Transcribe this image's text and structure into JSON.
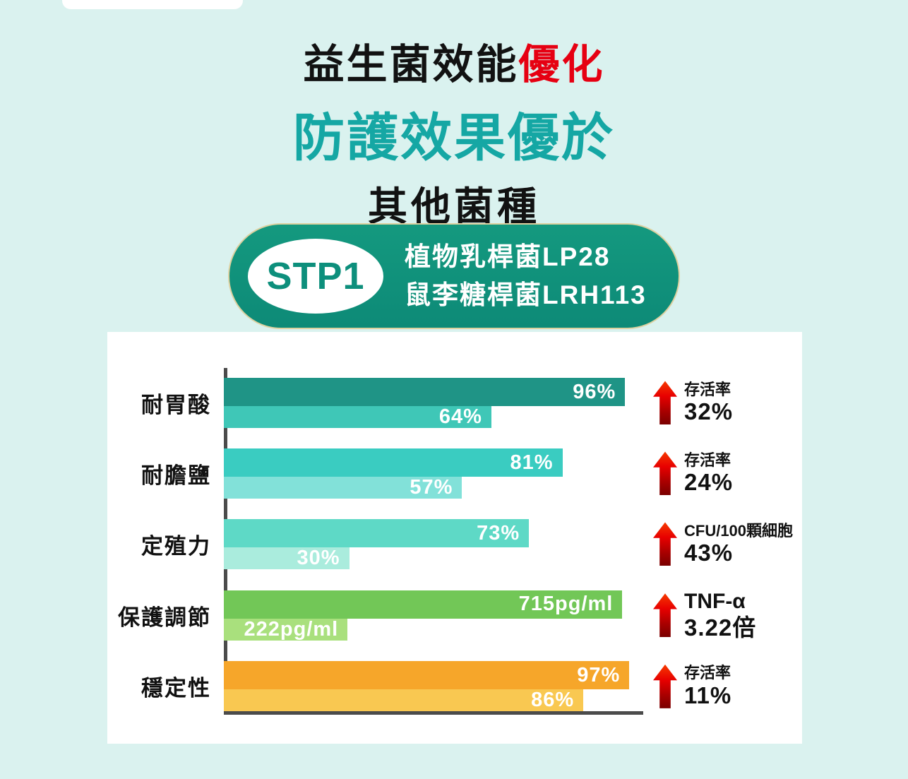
{
  "page": {
    "background": "#daf2ef"
  },
  "header": {
    "title_line1_black": "益生菌效能",
    "title_line1_red": "優化",
    "title_line2": "防護效果優於",
    "title_line3": "其他菌種",
    "accent_red": "#e60012",
    "accent_teal": "#15a7a4"
  },
  "badge": {
    "code": "STP1",
    "line1": "植物乳桿菌LP28",
    "line2": "鼠李糖桿菌LRH113",
    "background": "#0f9180",
    "code_color": "#0d8f7c"
  },
  "chart_data": {
    "type": "bar",
    "orientation": "horizontal",
    "title": "益生菌效能優化 防護效果優於其他菌種",
    "grid": false,
    "legend": false,
    "axis_color": "#4b4b4b",
    "arrow_icon": "up-arrow",
    "arrow_color_top": "#f63b00",
    "arrow_color_bottom": "#7a0000",
    "rows": [
      {
        "category": "耐胃酸",
        "values": [
          96,
          64
        ],
        "labels": [
          "96%",
          "64%"
        ],
        "max": 100,
        "colors": [
          "#1f9486",
          "#3fc7b7"
        ],
        "annotation": {
          "line1": "存活率",
          "line2": "32%"
        }
      },
      {
        "category": "耐膽鹽",
        "values": [
          81,
          57
        ],
        "labels": [
          "81%",
          "57%"
        ],
        "max": 100,
        "colors": [
          "#3accc1",
          "#82e1d9"
        ],
        "annotation": {
          "line1": "存活率",
          "line2": "24%"
        }
      },
      {
        "category": "定殖力",
        "values": [
          73,
          30
        ],
        "labels": [
          "73%",
          "30%"
        ],
        "max": 100,
        "colors": [
          "#5ed9c6",
          "#aaecdd"
        ],
        "annotation": {
          "line1": "CFU/100顆細胞",
          "line2": "43%"
        }
      },
      {
        "category": "保護調節",
        "values": [
          715,
          222
        ],
        "labels": [
          "715pg/ml",
          "222pg/ml"
        ],
        "max": 750,
        "colors": [
          "#72c757",
          "#a9e07d"
        ],
        "annotation": {
          "line1": "TNF-α",
          "line2": "3.22倍",
          "large_first": true
        }
      },
      {
        "category": "穩定性",
        "values": [
          97,
          86
        ],
        "labels": [
          "97%",
          "86%"
        ],
        "max": 100,
        "colors": [
          "#f6a62a",
          "#f9c851"
        ],
        "annotation": {
          "line1": "存活率",
          "line2": "11%"
        }
      }
    ]
  }
}
